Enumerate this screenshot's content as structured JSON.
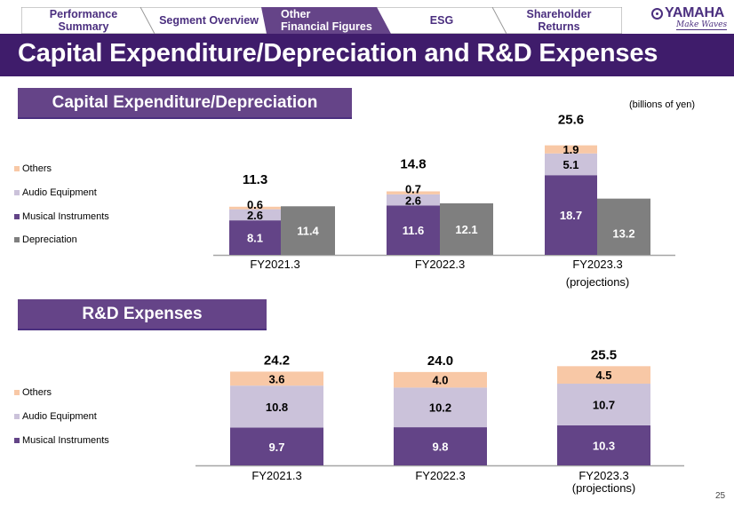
{
  "nav": {
    "tabs": [
      {
        "label_lines": [
          "Performance",
          "Summary"
        ],
        "active": false
      },
      {
        "label_lines": [
          "Segment  Overview"
        ],
        "active": false
      },
      {
        "label_lines": [
          "Other",
          "Financial  Figures"
        ],
        "active": true
      },
      {
        "label_lines": [
          "ESG"
        ],
        "active": false
      },
      {
        "label_lines": [
          "Shareholder",
          "Returns"
        ],
        "active": false
      }
    ],
    "logo": {
      "brand": "YAMAHA",
      "tagline": "Make Waves"
    }
  },
  "header": {
    "title": "Capital Expenditure/Depreciation and R&D Expenses"
  },
  "units": "(billions of yen)",
  "page_number": "25",
  "colors": {
    "musical_instruments": "#634487",
    "audio_equipment": "#cbc2da",
    "others": "#f8c8a6",
    "depreciation": "#7f7f7f",
    "title_bar": "#3f1c6b",
    "section_header": "#654488",
    "nav_active": "#654488"
  },
  "chart_data": [
    {
      "id": "capex",
      "type": "bar",
      "stacked": true,
      "title": "Capital Expenditure/Depreciation",
      "units": "billions of yen",
      "categories": [
        "FY2021.3",
        "FY2022.3",
        "FY2023.3"
      ],
      "category_sublabels": [
        "",
        "",
        "(projections)"
      ],
      "legend": [
        "Others",
        "Audio Equipment",
        "Musical Instruments",
        "Depreciation"
      ],
      "series": [
        {
          "name": "Musical Instruments",
          "stack": "capex",
          "values": [
            8.1,
            11.6,
            18.7
          ],
          "labels": [
            "8.1",
            "11.6",
            "18.7"
          ]
        },
        {
          "name": "Audio Equipment",
          "stack": "capex",
          "values": [
            2.6,
            2.6,
            5.1
          ],
          "labels": [
            "2.6",
            "2.6",
            "5.1"
          ]
        },
        {
          "name": "Others",
          "stack": "capex",
          "values": [
            0.6,
            0.7,
            1.9
          ],
          "labels": [
            "0.6",
            "0.7",
            "1.9"
          ]
        },
        {
          "name": "Depreciation",
          "stack": "depreciation",
          "values": [
            11.4,
            12.1,
            13.2
          ],
          "labels": [
            "11.4",
            "12.1",
            "13.2"
          ]
        }
      ],
      "totals": [
        "11.3",
        "14.8",
        "25.6"
      ],
      "ylim": [
        0,
        26
      ],
      "grid": false,
      "legend_position": "left"
    },
    {
      "id": "rd",
      "type": "bar",
      "stacked": true,
      "title": "R&D Expenses",
      "units": "billions of yen",
      "categories": [
        "FY2021.3",
        "FY2022.3",
        "FY2023.3"
      ],
      "category_sublabels": [
        "",
        "",
        "(projections)"
      ],
      "legend": [
        "Others",
        "Audio Equipment",
        "Musical Instruments"
      ],
      "series": [
        {
          "name": "Musical Instruments",
          "values": [
            9.7,
            9.8,
            10.3
          ],
          "labels": [
            "9.7",
            "9.8",
            "10.3"
          ]
        },
        {
          "name": "Audio Equipment",
          "values": [
            10.8,
            10.2,
            10.7
          ],
          "labels": [
            "10.8",
            "10.2",
            "10.7"
          ]
        },
        {
          "name": "Others",
          "values": [
            3.6,
            4.0,
            4.5
          ],
          "labels": [
            "3.6",
            "4.0",
            "4.5"
          ]
        }
      ],
      "totals": [
        "24.2",
        "24.0",
        "25.5"
      ],
      "ylim": [
        0,
        26
      ],
      "grid": false,
      "legend_position": "left"
    }
  ]
}
